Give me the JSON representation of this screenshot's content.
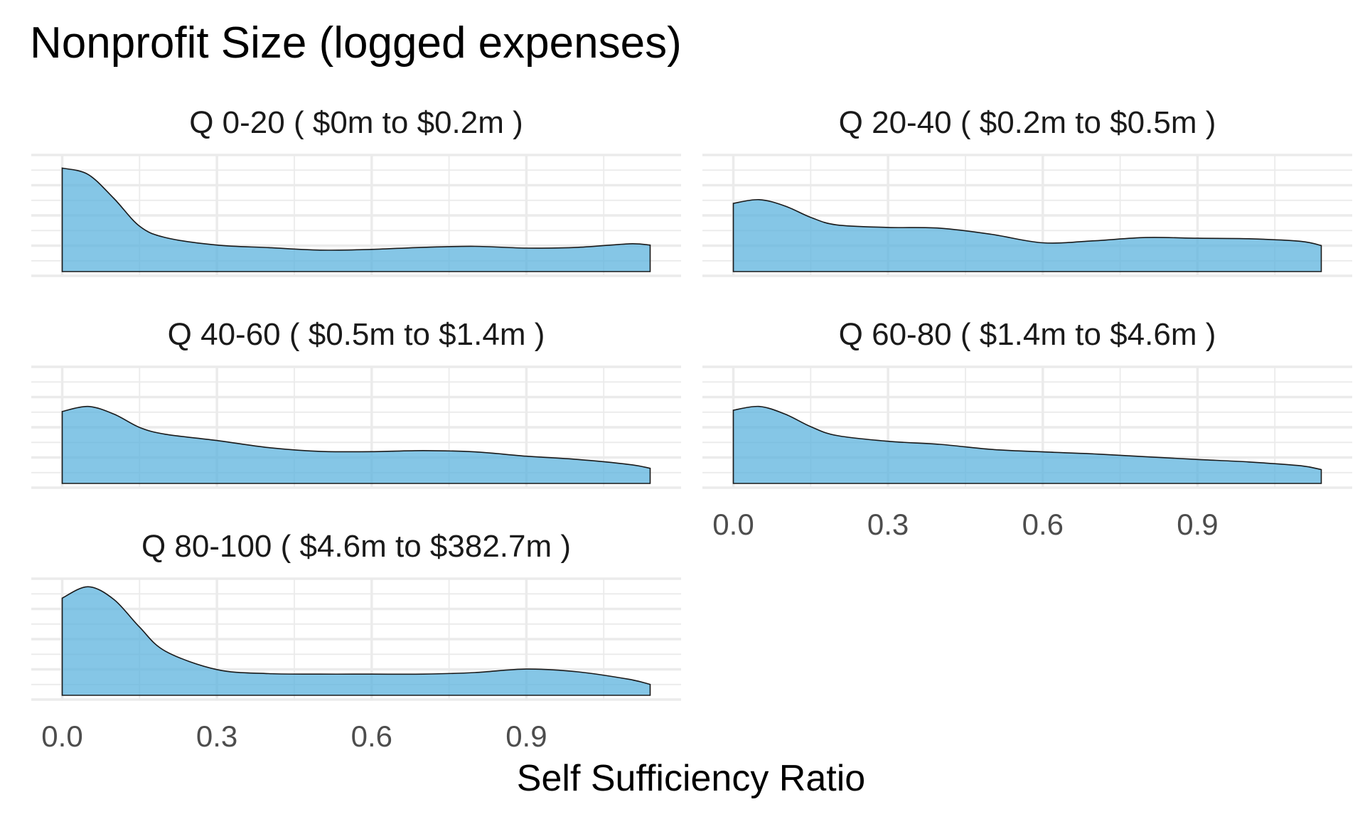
{
  "chart_data": {
    "type": "area",
    "title": "Nonprofit Size (logged expenses)",
    "xlabel": "Self Sufficiency Ratio",
    "ylabel": "",
    "xlim": [
      0,
      1.14
    ],
    "x_ticks": [
      "0.0",
      "0.3",
      "0.6",
      "0.9"
    ],
    "x_tick_values": [
      0,
      0.3,
      0.6,
      0.9
    ],
    "y_axis_labels_shown": false,
    "grid": true,
    "fill_color": "#56B0DC",
    "x": [
      0,
      0.05,
      0.1,
      0.15,
      0.2,
      0.3,
      0.4,
      0.5,
      0.6,
      0.7,
      0.8,
      0.9,
      1.0,
      1.1,
      1.14
    ],
    "series": [
      {
        "strip": "Q 0-20   ( $0m to $0.2m )",
        "values": [
          4.1,
          3.85,
          2.9,
          1.8,
          1.35,
          1.05,
          0.95,
          0.85,
          0.88,
          0.96,
          1.0,
          0.93,
          0.96,
          1.1,
          1.05
        ]
      },
      {
        "strip": "Q 20-40   ( $0.2m to $0.5m )",
        "values": [
          2.7,
          2.85,
          2.6,
          2.15,
          1.85,
          1.75,
          1.72,
          1.48,
          1.14,
          1.22,
          1.35,
          1.32,
          1.3,
          1.2,
          1.03
        ]
      },
      {
        "strip": "Q 40-60   ( $0.5m to $1.4m )",
        "values": [
          2.85,
          3.05,
          2.75,
          2.22,
          1.95,
          1.7,
          1.42,
          1.27,
          1.26,
          1.3,
          1.25,
          1.08,
          0.95,
          0.75,
          0.6
        ]
      },
      {
        "strip": "Q 60-80   ( $1.4m to $4.6m )",
        "values": [
          2.9,
          3.05,
          2.75,
          2.25,
          1.9,
          1.67,
          1.55,
          1.35,
          1.25,
          1.17,
          1.06,
          0.95,
          0.85,
          0.7,
          0.55
        ]
      },
      {
        "strip": "Q 80-100   ( $4.6m to $382.7m )",
        "values": [
          3.85,
          4.3,
          3.8,
          2.7,
          1.75,
          1.02,
          0.86,
          0.84,
          0.84,
          0.84,
          0.9,
          1.04,
          0.93,
          0.63,
          0.43
        ]
      }
    ]
  }
}
